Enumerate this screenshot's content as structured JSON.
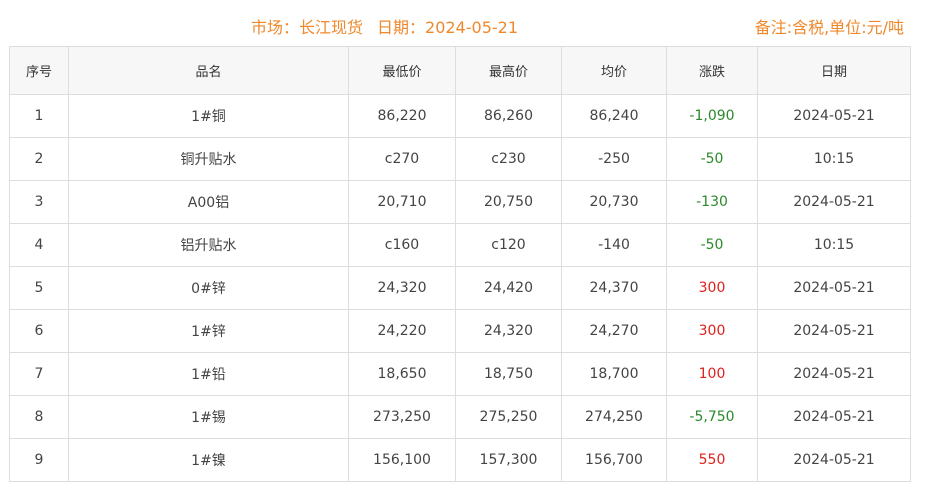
{
  "header": {
    "market": "市场：长江现货",
    "date": "日期：2024-05-21",
    "note": "备注:含税,单位:元/吨"
  },
  "columns": [
    "序号",
    "品名",
    "最低价",
    "最高价",
    "均价",
    "涨跌",
    "日期"
  ],
  "rows": [
    [
      "1",
      "1#铜",
      "86,220",
      "86,260",
      "86,240",
      "-1,090",
      "2024-05-21"
    ],
    [
      "2",
      "铜升贴水",
      "c270",
      "c230",
      "-250",
      "-50",
      "10:15"
    ],
    [
      "3",
      "A00铝",
      "20,710",
      "20,750",
      "20,730",
      "-130",
      "2024-05-21"
    ],
    [
      "4",
      "铝升贴水",
      "c160",
      "c120",
      "-140",
      "-50",
      "10:15"
    ],
    [
      "5",
      "0#锌",
      "24,320",
      "24,420",
      "24,370",
      "300",
      "2024-05-21"
    ],
    [
      "6",
      "1#锌",
      "24,220",
      "24,320",
      "24,270",
      "300",
      "2024-05-21"
    ],
    [
      "7",
      "1#铅",
      "18,650",
      "18,750",
      "18,700",
      "100",
      "2024-05-21"
    ],
    [
      "8",
      "1#锡",
      "273,250",
      "275,250",
      "274,250",
      "-5,750",
      "2024-05-21"
    ],
    [
      "9",
      "1#镍",
      "156,100",
      "157,300",
      "156,700",
      "550",
      "2024-05-21"
    ]
  ],
  "colors": {
    "title": "#f0882c",
    "down": "#2a8a2a",
    "up": "#e0201c"
  }
}
